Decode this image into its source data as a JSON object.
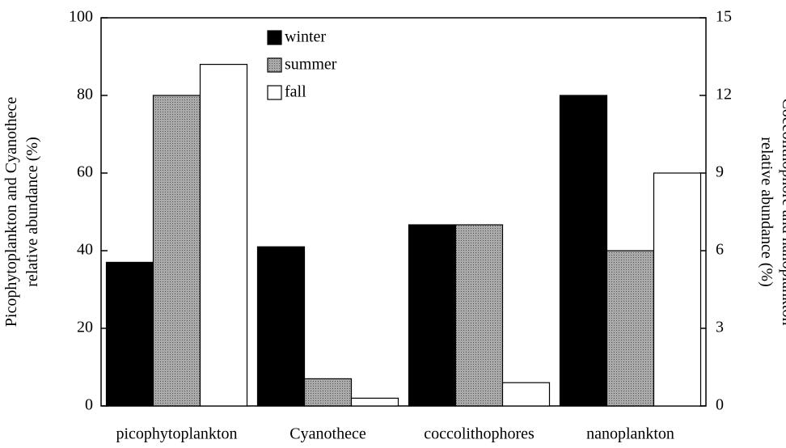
{
  "chart_data": {
    "type": "bar",
    "ylabel": "Picophytoplankton and Cyanothece relative abundance (%)",
    "y2label": "Coccolithophore and nanoplankton relative abundance (%)",
    "categories": [
      "picophytoplankton",
      "Cyanothece",
      "coccolithophores",
      "nanoplankton"
    ],
    "category_axes": [
      "y",
      "y",
      "y2",
      "y2"
    ],
    "series": [
      {
        "name": "winter",
        "color": "#000000",
        "values": [
          37,
          41,
          7,
          12
        ]
      },
      {
        "name": "summer",
        "color": "#999999",
        "values": [
          80,
          7,
          7,
          6
        ]
      },
      {
        "name": "fall",
        "color": "#ffffff",
        "values": [
          88,
          2,
          0.9,
          9
        ]
      }
    ],
    "ylim": [
      0,
      100
    ],
    "yticks": [
      0,
      20,
      40,
      60,
      80,
      100
    ],
    "y2lim": [
      0,
      15
    ],
    "y2ticks": [
      0,
      3,
      6,
      9,
      12,
      15
    ],
    "legend": "top"
  }
}
